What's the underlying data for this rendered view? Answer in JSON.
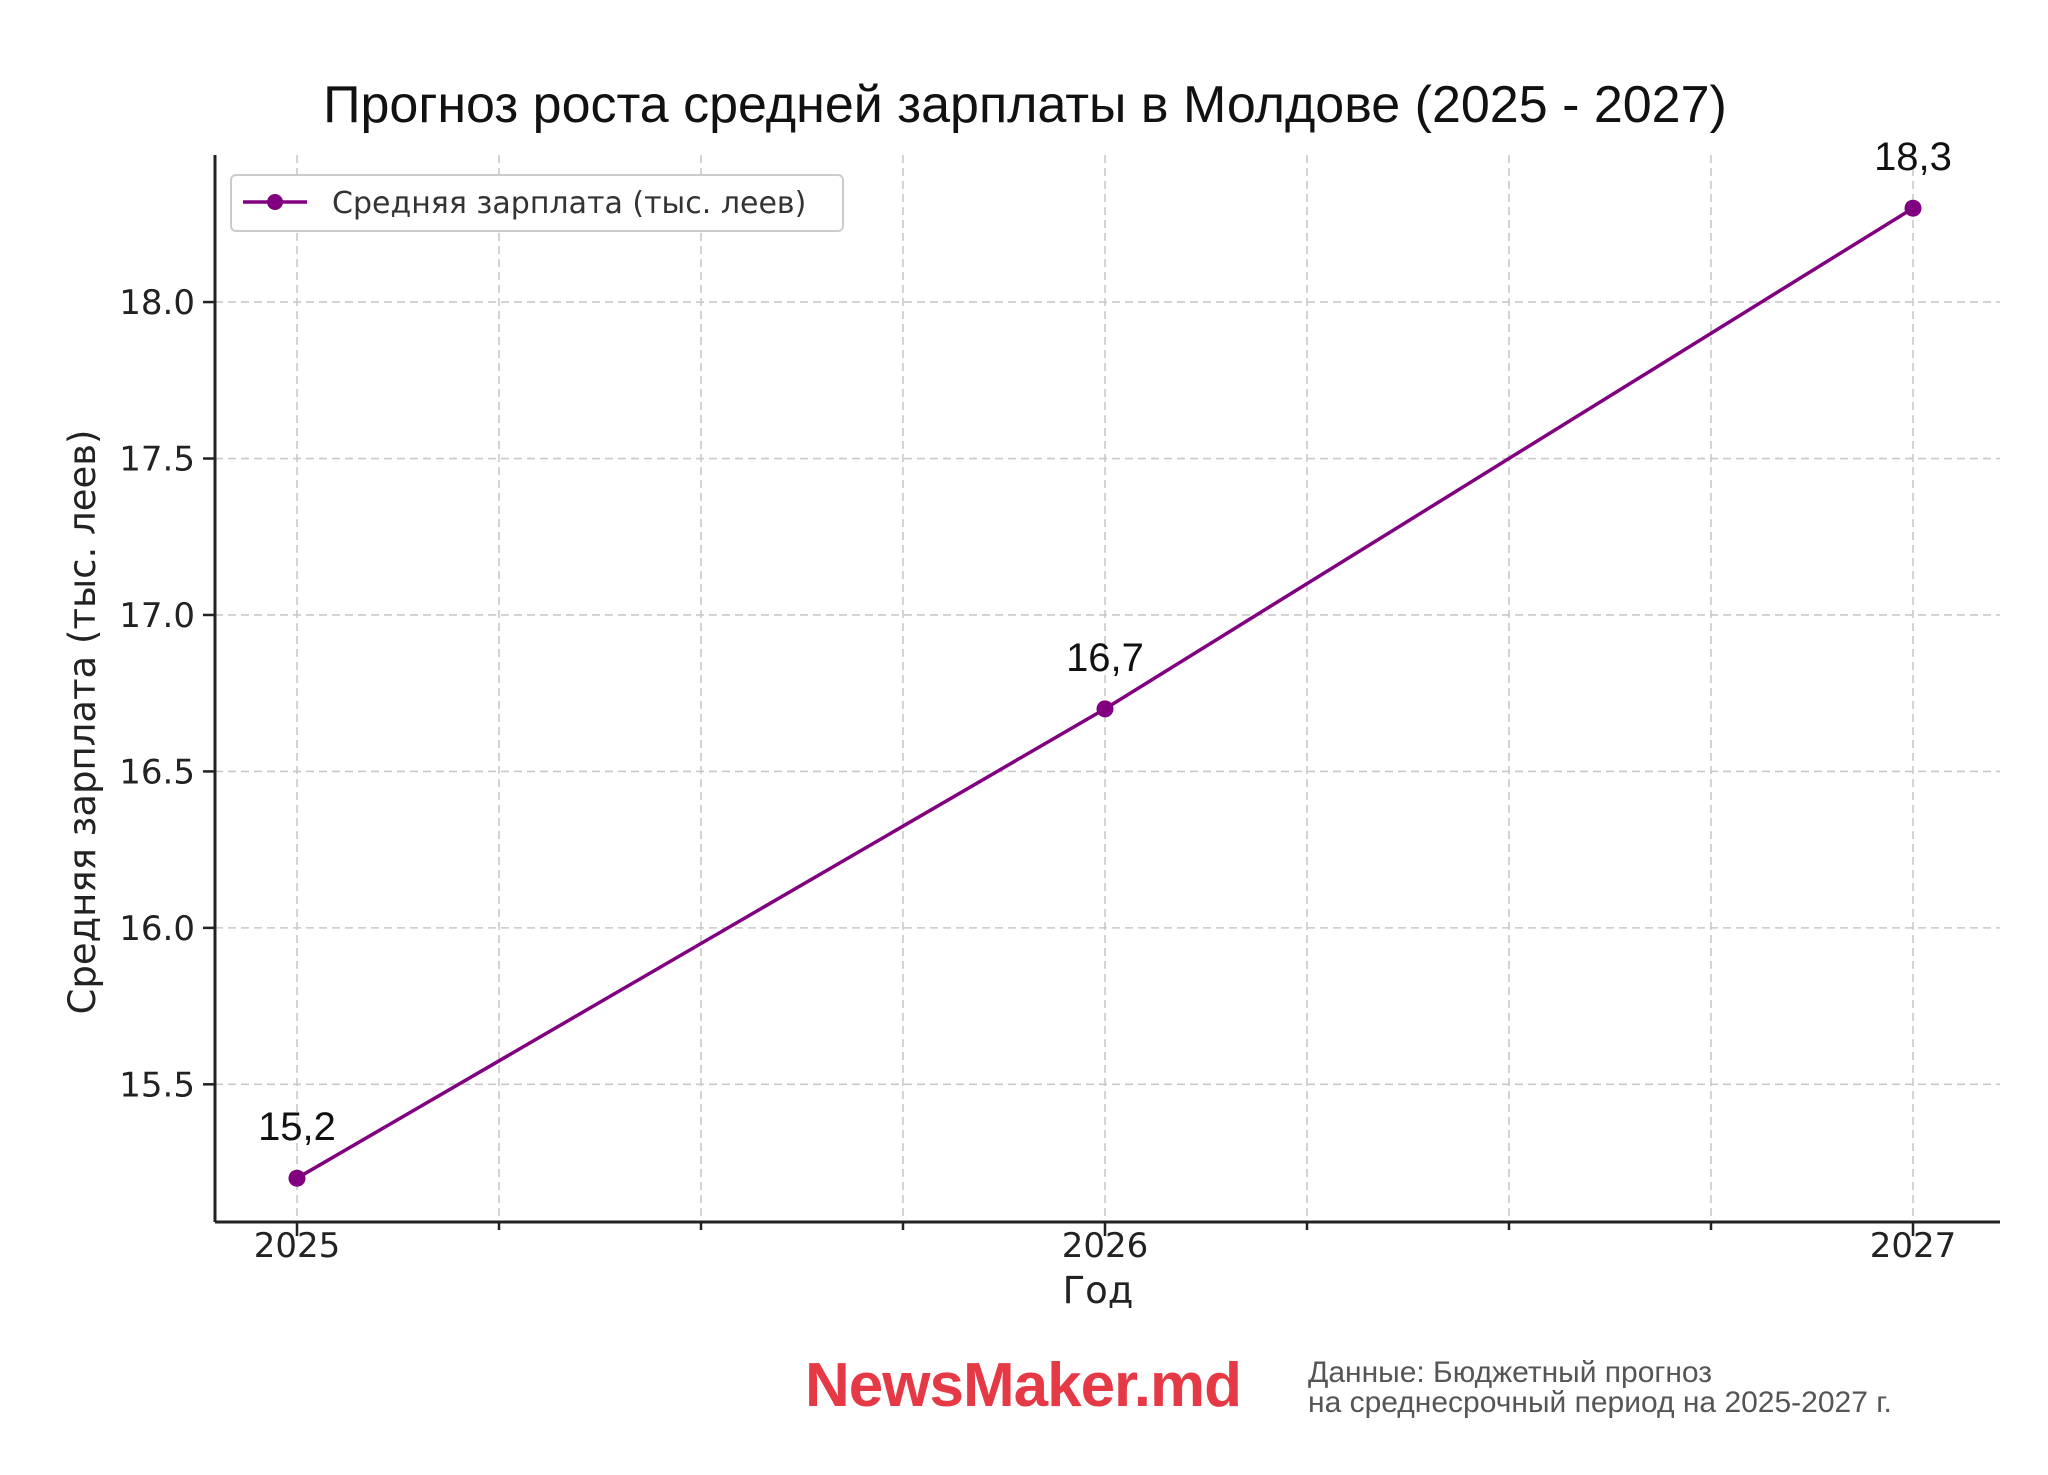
{
  "chart_data": {
    "type": "line",
    "title": "Прогноз роста средней зарплаты в Молдове (2025 - 2027)",
    "xlabel": "Год",
    "ylabel": "Средняя зарплата (тыс. леев)",
    "x": [
      "2025",
      "2026",
      "2027"
    ],
    "x_tick_labels": [
      "2025",
      "2026",
      "2027"
    ],
    "ylim": [
      15.06,
      18.47
    ],
    "y_ticks": [
      15.5,
      16.0,
      16.5,
      17.0,
      17.5,
      18.0
    ],
    "y_tick_labels": [
      "15.5",
      "16.0",
      "16.5",
      "17.0",
      "17.5",
      "18.0"
    ],
    "grid": true,
    "legend_position": "upper-left",
    "series": [
      {
        "name": "Средняя зарплата (тыс. леев)",
        "color": "#800080",
        "marker": "circle",
        "values": [
          15.2,
          16.7,
          18.3
        ],
        "data_labels": [
          "15,2",
          "16,7",
          "18,3"
        ]
      }
    ]
  },
  "footer": {
    "brand_prefix": "News",
    "brand_suffix": "Maker.md",
    "brand_color": "#e63946",
    "source_line1": "Данные: Бюджетный прогноз",
    "source_line2": "на среднесрочный период на 2025-2027 г."
  }
}
